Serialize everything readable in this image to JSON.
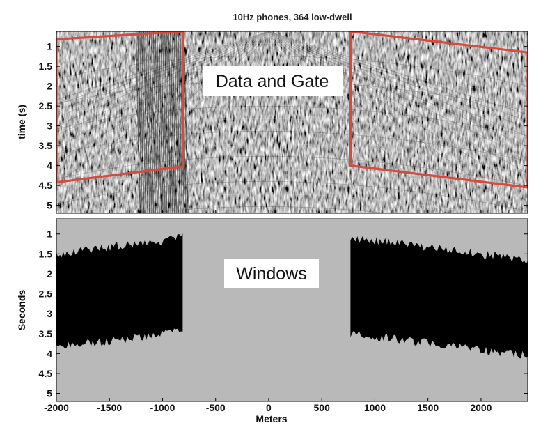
{
  "chart_data": [
    {
      "type": "heatmap",
      "panel": "top",
      "title": "10Hz phones, 364 low-dwell",
      "annotation": "Data and Gate",
      "ylabel": "time (s)",
      "xlabel": "",
      "xlim": [
        -2000,
        2440
      ],
      "ylim": [
        5.2,
        0.62
      ],
      "yticks": [
        1,
        1.5,
        2,
        2.5,
        3,
        3.5,
        4,
        4.5,
        5
      ],
      "ytick_labels": [
        "1",
        "1.5",
        "2",
        "2.5",
        "3",
        "3.5",
        "4",
        "4.5",
        "5"
      ],
      "gates": [
        {
          "name": "left-gate",
          "points": [
            [
              -2000,
              0.82
            ],
            [
              -810,
              0.62
            ],
            [
              -810,
              4.02
            ],
            [
              -2000,
              4.42
            ]
          ]
        },
        {
          "name": "right-gate",
          "points": [
            [
              770,
              0.62
            ],
            [
              2440,
              1.15
            ],
            [
              2440,
              4.55
            ],
            [
              770,
              4.0
            ]
          ]
        }
      ],
      "gate_color": "#d84a3c"
    },
    {
      "type": "area",
      "panel": "bottom",
      "annotation": "Windows",
      "ylabel": "Seconds",
      "xlabel": "Meters",
      "xlim": [
        -2000,
        2440
      ],
      "ylim": [
        5.2,
        0.62
      ],
      "xticks": [
        -2000,
        -1500,
        -1000,
        -500,
        0,
        500,
        1000,
        1500,
        2000
      ],
      "xtick_labels": [
        "-2000",
        "-1500",
        "-1000",
        "-500",
        "0",
        "500",
        "1000",
        "1500",
        "2000"
      ],
      "yticks": [
        1,
        1.5,
        2,
        2.5,
        3,
        3.5,
        4,
        4.5,
        5
      ],
      "ytick_labels": [
        "1",
        "1.5",
        "2",
        "2.5",
        "3",
        "3.5",
        "4",
        "4.5",
        "5"
      ],
      "windows": [
        {
          "name": "left-window",
          "x_start": -2000,
          "x_end": -810,
          "top_start": 1.5,
          "top_end": 1.1,
          "bottom_start": 3.85,
          "bottom_end": 3.45
        },
        {
          "name": "right-window",
          "x_start": 770,
          "x_end": 2440,
          "top_start": 1.1,
          "top_end": 1.65,
          "bottom_start": 3.5,
          "bottom_end": 4.05
        }
      ],
      "background_color": "#b9b9b9",
      "window_color": "#000000"
    }
  ]
}
